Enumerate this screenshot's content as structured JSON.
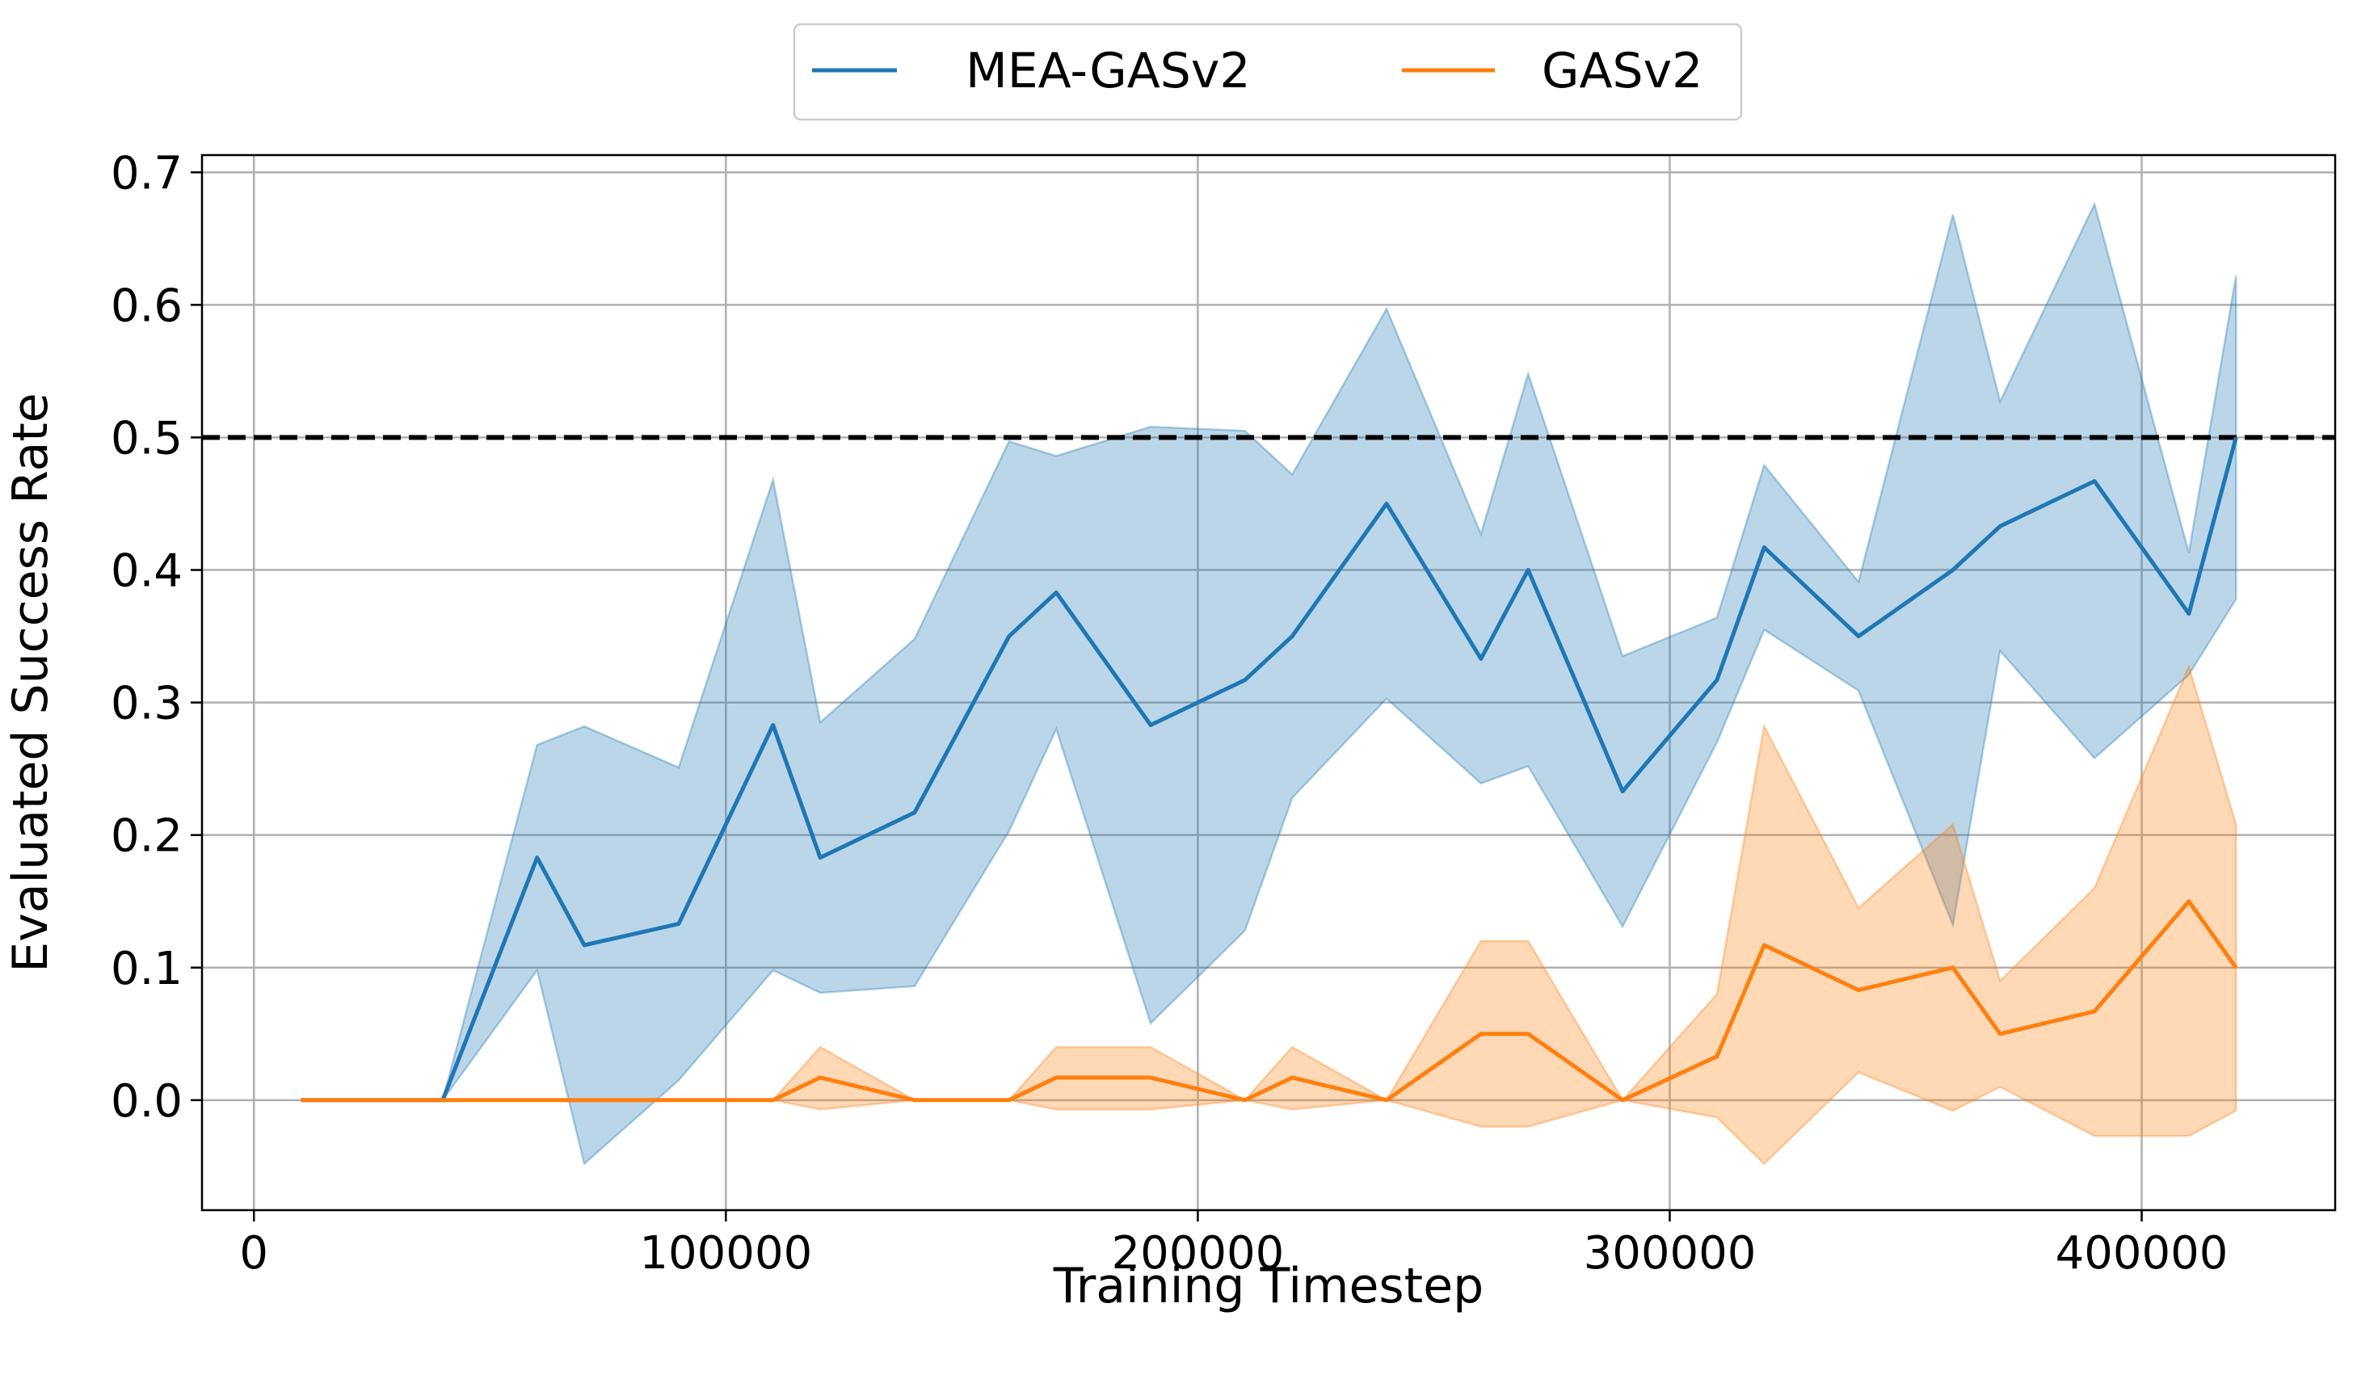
{
  "chart_data": {
    "type": "line",
    "title": "",
    "xlabel": "Training Timestep",
    "ylabel": "Evaluated Success Rate",
    "xlim": [
      -11000,
      441000
    ],
    "ylim": [
      -0.083,
      0.713
    ],
    "xticks": [
      0,
      100000,
      200000,
      300000,
      400000
    ],
    "xtick_labels": [
      "0",
      "100000",
      "200000",
      "300000",
      "400000"
    ],
    "yticks": [
      0.0,
      0.1,
      0.2,
      0.3,
      0.4,
      0.5,
      0.6,
      0.7
    ],
    "ytick_labels": [
      "0.0",
      "0.1",
      "0.2",
      "0.3",
      "0.4",
      "0.5",
      "0.6",
      "0.7"
    ],
    "grid": true,
    "legend_position": "top-center-outside",
    "reference_line": {
      "y": 0.5,
      "style": "dashed",
      "color": "#000000"
    },
    "series": [
      {
        "name": "MEA-GASv2",
        "color": "#1f77b4",
        "x": [
          10000,
          40000,
          60000,
          70000,
          90000,
          110000,
          120000,
          140000,
          160000,
          170000,
          190000,
          210000,
          220000,
          240000,
          260000,
          270000,
          290000,
          310000,
          320000,
          340000,
          360000,
          370000,
          390000,
          410000,
          420000
        ],
        "y": [
          0.0,
          0.0,
          0.183,
          0.117,
          0.133,
          0.283,
          0.183,
          0.217,
          0.35,
          0.383,
          0.283,
          0.317,
          0.35,
          0.45,
          0.333,
          0.4,
          0.233,
          0.317,
          0.417,
          0.35,
          0.4,
          0.433,
          0.467,
          0.367,
          0.5
        ],
        "upper": [
          0.0,
          0.0,
          0.268,
          0.282,
          0.251,
          0.468,
          0.285,
          0.348,
          0.497,
          0.486,
          0.508,
          0.505,
          0.472,
          0.597,
          0.427,
          0.548,
          0.335,
          0.364,
          0.479,
          0.391,
          0.668,
          0.527,
          0.676,
          0.413,
          0.622
        ],
        "lower": [
          0.0,
          0.0,
          0.098,
          -0.048,
          0.015,
          0.098,
          0.081,
          0.086,
          0.203,
          0.28,
          0.058,
          0.128,
          0.228,
          0.303,
          0.239,
          0.252,
          0.131,
          0.27,
          0.355,
          0.309,
          0.132,
          0.339,
          0.258,
          0.321,
          0.378
        ]
      },
      {
        "name": "GASv2",
        "color": "#ff7f0e",
        "x": [
          10000,
          40000,
          60000,
          70000,
          90000,
          110000,
          120000,
          140000,
          160000,
          170000,
          190000,
          210000,
          220000,
          240000,
          260000,
          270000,
          290000,
          310000,
          320000,
          340000,
          360000,
          370000,
          390000,
          410000,
          420000
        ],
        "y": [
          0.0,
          0.0,
          0.0,
          0.0,
          0.0,
          0.0,
          0.017,
          0.0,
          0.0,
          0.017,
          0.017,
          0.0,
          0.017,
          0.0,
          0.05,
          0.05,
          0.0,
          0.033,
          0.117,
          0.083,
          0.1,
          0.05,
          0.067,
          0.15,
          0.1
        ],
        "upper": [
          0.0,
          0.0,
          0.0,
          0.0,
          0.0,
          0.0,
          0.04,
          0.0,
          0.0,
          0.04,
          0.04,
          0.0,
          0.04,
          0.0,
          0.12,
          0.12,
          0.0,
          0.08,
          0.282,
          0.145,
          0.208,
          0.09,
          0.16,
          0.327,
          0.208
        ],
        "lower": [
          0.0,
          0.0,
          0.0,
          0.0,
          0.0,
          0.0,
          -0.007,
          0.0,
          0.0,
          -0.007,
          -0.007,
          0.0,
          -0.007,
          0.0,
          -0.02,
          -0.02,
          0.0,
          -0.013,
          -0.048,
          0.021,
          -0.008,
          0.01,
          -0.027,
          -0.027,
          -0.008
        ]
      }
    ]
  }
}
